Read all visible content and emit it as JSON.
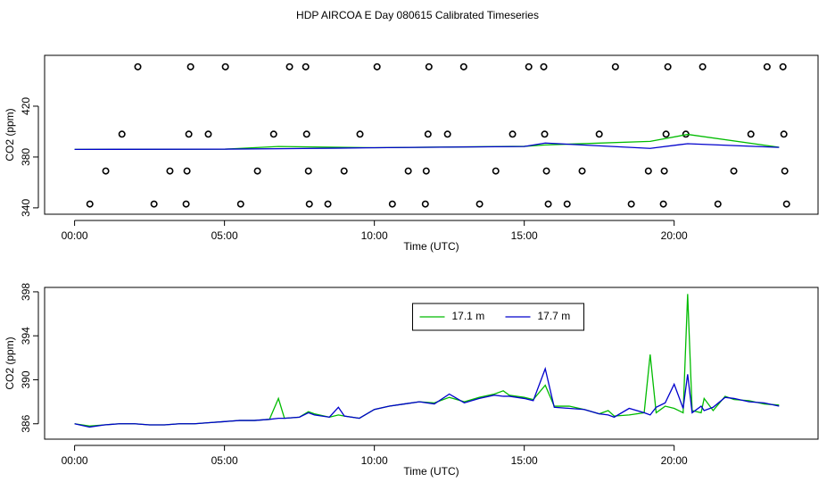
{
  "chart_data": [
    {
      "type": "scatter",
      "title": "HDP AIRCOA E  Day 080615  Calibrated Timeseries",
      "xlabel": "Time (UTC)",
      "ylabel": "CO2 (ppm)",
      "xlim": [
        -1.0,
        24.8
      ],
      "ylim": [
        335,
        460
      ],
      "xticks": [
        {
          "value": 0,
          "label": "00:00"
        },
        {
          "value": 5,
          "label": "05:00"
        },
        {
          "value": 10,
          "label": "10:00"
        },
        {
          "value": 15,
          "label": "15:00"
        },
        {
          "value": 20,
          "label": "20:00"
        }
      ],
      "yticks": [
        340,
        380,
        420
      ],
      "series": [
        {
          "type": "scatter",
          "marker": "circle",
          "color": "#000000",
          "x": [
            2.11,
            3.87,
            5.03,
            7.17,
            7.71,
            10.09,
            11.82,
            12.98,
            15.15,
            15.65,
            18.04,
            19.79,
            20.95,
            23.1,
            23.63,
            1.58,
            3.81,
            4.46,
            6.64,
            7.74,
            9.52,
            11.79,
            12.44,
            14.61,
            15.68,
            17.5,
            19.73,
            20.39,
            22.56,
            23.66,
            1.04,
            3.18,
            3.75,
            6.1,
            7.8,
            8.99,
            11.13,
            11.73,
            14.05,
            15.74,
            16.93,
            19.14,
            19.67,
            21.99,
            23.69,
            0.51,
            2.65,
            3.72,
            5.54,
            7.83,
            8.45,
            10.6,
            11.7,
            13.51,
            15.8,
            16.43,
            18.57,
            19.64,
            21.46,
            23.75
          ],
          "values": [
            451,
            451,
            451,
            451,
            451,
            451,
            451,
            451,
            451,
            451,
            451,
            451,
            451,
            451,
            451,
            398,
            398,
            398,
            398,
            398,
            398,
            398,
            398,
            398,
            398,
            398,
            398,
            398,
            398,
            398,
            369,
            369,
            369,
            369,
            369,
            369,
            369,
            369,
            369,
            369,
            369,
            369,
            369,
            369,
            369,
            343,
            343,
            343,
            343,
            343,
            343,
            343,
            343,
            343,
            343,
            343,
            343,
            343,
            343,
            343
          ]
        },
        {
          "type": "line",
          "color": "#00bb00",
          "x": [
            0,
            5,
            6.8,
            10,
            15,
            15.7,
            19.2,
            20.45,
            23.5
          ],
          "values": [
            386.0,
            386.2,
            388.3,
            387.3,
            388.4,
            389.5,
            392.3,
            397.8,
            387.7
          ]
        },
        {
          "type": "line",
          "color": "#0000cc",
          "x": [
            0,
            5,
            6.8,
            10,
            15,
            15.7,
            19.2,
            20.45,
            23.5
          ],
          "values": [
            386.0,
            386.2,
            386.5,
            387.3,
            388.3,
            391.0,
            386.8,
            390.5,
            387.6
          ]
        }
      ]
    },
    {
      "type": "line",
      "xlabel": "Time (UTC)",
      "ylabel": "CO2 (ppm)",
      "xlim": [
        -1.0,
        24.8
      ],
      "ylim": [
        384.6,
        398.4
      ],
      "xticks": [
        {
          "value": 0,
          "label": "00:00"
        },
        {
          "value": 5,
          "label": "05:00"
        },
        {
          "value": 10,
          "label": "10:00"
        },
        {
          "value": 15,
          "label": "15:00"
        },
        {
          "value": 20,
          "label": "20:00"
        }
      ],
      "yticks": [
        386,
        390,
        394,
        398
      ],
      "legend": "top",
      "series": [
        {
          "name": "17.1 m",
          "color": "#00bb00",
          "x": [
            0,
            0.5,
            1,
            1.5,
            2,
            2.5,
            3,
            3.5,
            4,
            4.5,
            5,
            5.5,
            6,
            6.5,
            6.8,
            7,
            7.5,
            7.8,
            8,
            8.5,
            8.8,
            9,
            9.5,
            10,
            10.5,
            11,
            11.5,
            12,
            12.5,
            13,
            13.5,
            14,
            14.3,
            14.5,
            15,
            15.3,
            15.7,
            16,
            16.5,
            17,
            17.5,
            17.8,
            18,
            18.5,
            19,
            19.2,
            19.4,
            19.7,
            20,
            20.3,
            20.45,
            20.6,
            20.9,
            21,
            21.3,
            21.7,
            22,
            22.5,
            23,
            23.5
          ],
          "values": [
            386.0,
            385.8,
            385.9,
            386.0,
            386.0,
            385.9,
            385.9,
            386.0,
            386.0,
            386.1,
            386.2,
            386.3,
            386.3,
            386.4,
            388.3,
            386.5,
            386.6,
            387.1,
            386.9,
            386.6,
            386.8,
            386.7,
            386.5,
            387.3,
            387.6,
            387.8,
            388.0,
            387.9,
            388.4,
            388.0,
            388.4,
            388.7,
            389.0,
            388.6,
            388.4,
            388.2,
            389.5,
            387.6,
            387.6,
            387.3,
            386.9,
            387.2,
            386.7,
            386.8,
            387.0,
            392.3,
            387.0,
            387.6,
            387.4,
            387.0,
            397.8,
            387.2,
            387.0,
            388.3,
            387.2,
            388.5,
            388.2,
            388.1,
            387.8,
            387.7
          ]
        },
        {
          "name": "17.7 m",
          "color": "#0000cc",
          "x": [
            0,
            0.5,
            1,
            1.5,
            2,
            2.5,
            3,
            3.5,
            4,
            4.5,
            5,
            5.5,
            6,
            6.5,
            6.8,
            7,
            7.5,
            7.8,
            8,
            8.5,
            8.8,
            9,
            9.5,
            10,
            10.5,
            11,
            11.5,
            12,
            12.5,
            13,
            13.5,
            14,
            14.3,
            14.5,
            15,
            15.3,
            15.7,
            16,
            16.5,
            17,
            17.5,
            17.8,
            18,
            18.5,
            19,
            19.2,
            19.4,
            19.7,
            20,
            20.3,
            20.45,
            20.6,
            20.9,
            21,
            21.3,
            21.7,
            22,
            22.5,
            23,
            23.5
          ],
          "values": [
            386.0,
            385.7,
            385.9,
            386.0,
            386.0,
            385.9,
            385.9,
            386.0,
            386.0,
            386.1,
            386.2,
            386.3,
            386.3,
            386.4,
            386.5,
            386.5,
            386.6,
            387.0,
            386.8,
            386.6,
            387.5,
            386.7,
            386.5,
            387.3,
            387.6,
            387.8,
            388.0,
            387.8,
            388.7,
            387.9,
            388.3,
            388.6,
            388.5,
            388.5,
            388.3,
            388.1,
            391.0,
            387.5,
            387.4,
            387.3,
            386.9,
            386.8,
            386.6,
            387.4,
            387.0,
            386.8,
            387.5,
            387.9,
            389.6,
            387.4,
            390.5,
            387.0,
            387.6,
            387.2,
            387.5,
            388.4,
            388.3,
            388.0,
            387.9,
            387.6
          ]
        }
      ]
    }
  ]
}
